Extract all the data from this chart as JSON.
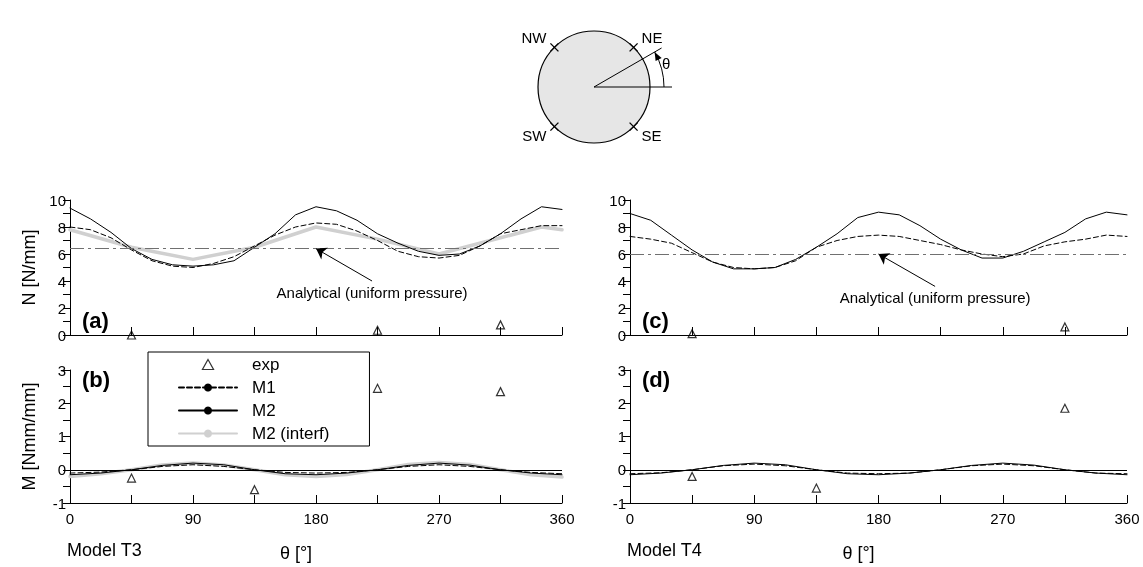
{
  "chart_data": [
    {
      "type": "other",
      "annotations": [
        "NW",
        "NE",
        "SW",
        "SE",
        "θ"
      ]
    },
    {
      "type": "line",
      "ylabel": "N [N/mm]",
      "xlim": [
        0,
        360
      ],
      "xticks": [
        0,
        {
          "value": 45,
          "label": null
        },
        90,
        {
          "value": 135,
          "label": null
        },
        180,
        {
          "value": 225,
          "label": null
        },
        270,
        {
          "value": 315,
          "label": null
        },
        360
      ],
      "ylim": [
        0,
        10
      ],
      "yticks": [
        0,
        {
          "value": 1,
          "label": null
        },
        2,
        {
          "value": 3,
          "label": null
        },
        4,
        {
          "value": 5,
          "label": null
        },
        6,
        {
          "value": 7,
          "label": null
        },
        8,
        {
          "value": 9,
          "label": null
        },
        10
      ],
      "tick_labels": "y",
      "grid": false,
      "legend": false,
      "series": [
        {
          "type": "scatter",
          "marker": "triangle",
          "color": "#000000",
          "x": [
            45,
            225,
            315
          ],
          "values": [
            0.0,
            0.35,
            0.75
          ]
        },
        {
          "color": "#000000",
          "line_style": "dashed",
          "marker": "none",
          "x": [
            0,
            15,
            30,
            45,
            60,
            75,
            90,
            105,
            120,
            135,
            150,
            165,
            180,
            195,
            210,
            225,
            240,
            255,
            270,
            285,
            300,
            315,
            330,
            345,
            360
          ],
          "values": [
            8.0,
            7.8,
            7.2,
            6.3,
            5.5,
            5.1,
            5.0,
            5.3,
            5.8,
            6.6,
            7.4,
            8.0,
            8.3,
            8.2,
            7.7,
            7.0,
            6.2,
            5.8,
            5.7,
            5.9,
            6.6,
            7.5,
            7.8,
            8.1,
            8.1
          ]
        },
        {
          "color": "#000000",
          "line_style": "solid",
          "marker": "none",
          "x": [
            0,
            15,
            30,
            45,
            60,
            75,
            90,
            105,
            120,
            135,
            150,
            165,
            180,
            195,
            210,
            225,
            240,
            255,
            270,
            285,
            300,
            315,
            330,
            345,
            360
          ],
          "values": [
            9.4,
            8.6,
            7.6,
            6.4,
            5.6,
            5.2,
            5.1,
            5.2,
            5.5,
            6.5,
            7.5,
            8.9,
            9.5,
            9.2,
            8.5,
            7.5,
            6.8,
            6.2,
            5.9,
            6.0,
            6.6,
            7.5,
            8.6,
            9.5,
            9.3
          ]
        },
        {
          "color": "#d0d0d0",
          "line_style": "solid",
          "marker": "none",
          "x": [
            0,
            45,
            90,
            135,
            180,
            225,
            270,
            315,
            345,
            360
          ],
          "values": [
            7.8,
            6.5,
            5.6,
            6.5,
            8.0,
            7.1,
            6.0,
            7.2,
            8.0,
            7.8
          ]
        }
      ],
      "ref_lines": [
        {
          "axis": "y",
          "value": 6.4,
          "color": "#707070",
          "line_style": "dashed"
        }
      ],
      "annotations": [
        "(a)",
        {
          "text": "Analytical (uniform pressure)",
          "x": 180,
          "y": 6.4
        }
      ]
    },
    {
      "type": "line",
      "ylabel": "M [Nmm/mm]",
      "xlabel": "θ [°]",
      "xlim": [
        0,
        360
      ],
      "xticks": [
        0,
        {
          "value": 45,
          "label": null
        },
        90,
        {
          "value": 135,
          "label": null
        },
        180,
        {
          "value": 225,
          "label": null
        },
        270,
        {
          "value": 315,
          "label": null
        },
        360
      ],
      "ylim": [
        -1,
        3
      ],
      "yticks": [
        -1,
        {
          "value": -0.5,
          "label": null
        },
        0,
        {
          "value": 0.5,
          "label": null
        },
        1,
        {
          "value": 1.5,
          "label": null
        },
        2,
        {
          "value": 2.5,
          "label": null
        },
        3
      ],
      "grid": false,
      "legend": "top left",
      "series": [
        {
          "type": "scatter",
          "name": "exp",
          "marker": "triangle",
          "color": "#000000",
          "x": [
            45,
            135,
            225,
            315
          ],
          "values": [
            -0.25,
            -0.6,
            2.45,
            2.35
          ]
        },
        {
          "name": "M1",
          "color": "#000000",
          "line_style": "dashed",
          "marker": "none",
          "x": [
            0,
            22.5,
            45,
            67.5,
            90,
            112.5,
            135,
            157.5,
            180,
            202.5,
            225,
            247.5,
            270,
            292.5,
            315,
            337.5,
            360
          ],
          "values": [
            -0.1,
            -0.07,
            0,
            0.1,
            0.15,
            0.1,
            0,
            -0.08,
            -0.1,
            -0.08,
            0,
            0.1,
            0.15,
            0.1,
            0,
            -0.08,
            -0.12
          ]
        },
        {
          "name": "M2",
          "color": "#000000",
          "line_style": "solid",
          "marker": "none",
          "x": [
            0,
            22.5,
            45,
            67.5,
            90,
            112.5,
            135,
            157.5,
            180,
            202.5,
            225,
            247.5,
            270,
            292.5,
            315,
            337.5,
            360
          ],
          "values": [
            -0.15,
            -0.1,
            0,
            0.13,
            0.2,
            0.15,
            0,
            -0.12,
            -0.15,
            -0.1,
            0,
            0.13,
            0.2,
            0.14,
            0,
            -0.1,
            -0.15
          ]
        },
        {
          "name": "M2 (interf)",
          "color": "#d0d0d0",
          "line_style": "solid",
          "marker": "none",
          "x": [
            0,
            22.5,
            45,
            67.5,
            90,
            112.5,
            135,
            157.5,
            180,
            202.5,
            225,
            247.5,
            270,
            292.5,
            315,
            337.5,
            360
          ],
          "values": [
            -0.2,
            -0.12,
            0,
            0.14,
            0.2,
            0.14,
            0,
            -0.15,
            -0.2,
            -0.14,
            0,
            0.16,
            0.22,
            0.16,
            0,
            -0.15,
            -0.22
          ]
        }
      ],
      "ref_lines": [
        {
          "axis": "y",
          "value": 0,
          "color": "#000000",
          "line_style": "solid"
        }
      ],
      "annotations": [
        "(b)",
        "Model T3"
      ]
    },
    {
      "type": "line",
      "xlim": [
        0,
        360
      ],
      "xticks": [
        0,
        {
          "value": 45,
          "label": null
        },
        90,
        {
          "value": 135,
          "label": null
        },
        180,
        {
          "value": 225,
          "label": null
        },
        270,
        {
          "value": 315,
          "label": null
        },
        360
      ],
      "ylim": [
        0,
        10
      ],
      "yticks": [
        0,
        {
          "value": 1,
          "label": null
        },
        2,
        {
          "value": 3,
          "label": null
        },
        4,
        {
          "value": 5,
          "label": null
        },
        6,
        {
          "value": 7,
          "label": null
        },
        8,
        {
          "value": 9,
          "label": null
        },
        10
      ],
      "tick_labels": "y",
      "grid": false,
      "legend": false,
      "series": [
        {
          "type": "scatter",
          "marker": "triangle",
          "color": "#000000",
          "x": [
            45,
            315
          ],
          "values": [
            0.1,
            0.6
          ]
        },
        {
          "color": "#000000",
          "line_style": "dashed",
          "marker": "none",
          "x": [
            0,
            15,
            30,
            45,
            60,
            75,
            90,
            105,
            120,
            135,
            150,
            165,
            180,
            195,
            210,
            225,
            240,
            255,
            270,
            285,
            300,
            315,
            330,
            345,
            360
          ],
          "values": [
            7.3,
            7.1,
            6.8,
            6.1,
            5.4,
            5.0,
            4.9,
            5.0,
            5.5,
            6.5,
            7.0,
            7.3,
            7.4,
            7.3,
            7.0,
            6.7,
            6.3,
            6.0,
            5.8,
            6.0,
            6.6,
            6.9,
            7.1,
            7.4,
            7.3
          ]
        },
        {
          "color": "#000000",
          "line_style": "solid",
          "marker": "none",
          "x": [
            0,
            15,
            30,
            45,
            60,
            75,
            90,
            105,
            120,
            135,
            150,
            165,
            180,
            195,
            210,
            225,
            240,
            255,
            270,
            285,
            300,
            315,
            330,
            345,
            360
          ],
          "values": [
            9.0,
            8.5,
            7.4,
            6.3,
            5.4,
            4.9,
            4.9,
            5.0,
            5.6,
            6.5,
            7.5,
            8.7,
            9.1,
            8.9,
            8.1,
            7.1,
            6.3,
            5.7,
            5.7,
            6.2,
            6.9,
            7.6,
            8.6,
            9.1,
            8.9
          ]
        }
      ],
      "ref_lines": [
        {
          "axis": "y",
          "value": 6.0,
          "color": "#707070",
          "line_style": "dashed"
        }
      ],
      "annotations": [
        "(c)",
        {
          "text": "Analytical (uniform pressure)",
          "x": 180,
          "y": 6.0
        }
      ]
    },
    {
      "type": "line",
      "xlabel": "θ [°]",
      "xlim": [
        0,
        360
      ],
      "xticks": [
        0,
        {
          "value": 45,
          "label": null
        },
        90,
        {
          "value": 135,
          "label": null
        },
        180,
        {
          "value": 225,
          "label": null
        },
        270,
        {
          "value": 315,
          "label": null
        },
        360
      ],
      "ylim": [
        -1,
        3
      ],
      "yticks": [
        -1,
        {
          "value": -0.5,
          "label": null
        },
        0,
        {
          "value": 0.5,
          "label": null
        },
        1,
        {
          "value": 1.5,
          "label": null
        },
        2,
        {
          "value": 2.5,
          "label": null
        },
        3
      ],
      "grid": false,
      "legend": false,
      "series": [
        {
          "type": "scatter",
          "marker": "triangle",
          "color": "#000000",
          "x": [
            45,
            135,
            315
          ],
          "values": [
            -0.2,
            -0.55,
            1.85
          ]
        },
        {
          "color": "#000000",
          "line_style": "dashed",
          "marker": "none",
          "x": [
            0,
            22.5,
            45,
            67.5,
            90,
            112.5,
            135,
            157.5,
            180,
            202.5,
            225,
            247.5,
            270,
            292.5,
            315,
            337.5,
            360
          ],
          "values": [
            -0.12,
            -0.09,
            0,
            0.12,
            0.17,
            0.12,
            0,
            -0.1,
            -0.12,
            -0.1,
            0,
            0.12,
            0.17,
            0.12,
            0,
            -0.1,
            -0.12
          ]
        },
        {
          "color": "#000000",
          "line_style": "solid",
          "marker": "none",
          "x": [
            0,
            22.5,
            45,
            67.5,
            90,
            112.5,
            135,
            157.5,
            180,
            202.5,
            225,
            247.5,
            270,
            292.5,
            315,
            337.5,
            360
          ],
          "values": [
            -0.15,
            -0.1,
            0,
            0.13,
            0.2,
            0.15,
            0,
            -0.12,
            -0.15,
            -0.1,
            0,
            0.13,
            0.2,
            0.14,
            0,
            -0.1,
            -0.15
          ]
        }
      ],
      "ref_lines": [
        {
          "axis": "y",
          "value": 0,
          "color": "#000000",
          "line_style": "solid"
        }
      ],
      "annotations": [
        "(d)",
        "Model T4"
      ]
    }
  ]
}
